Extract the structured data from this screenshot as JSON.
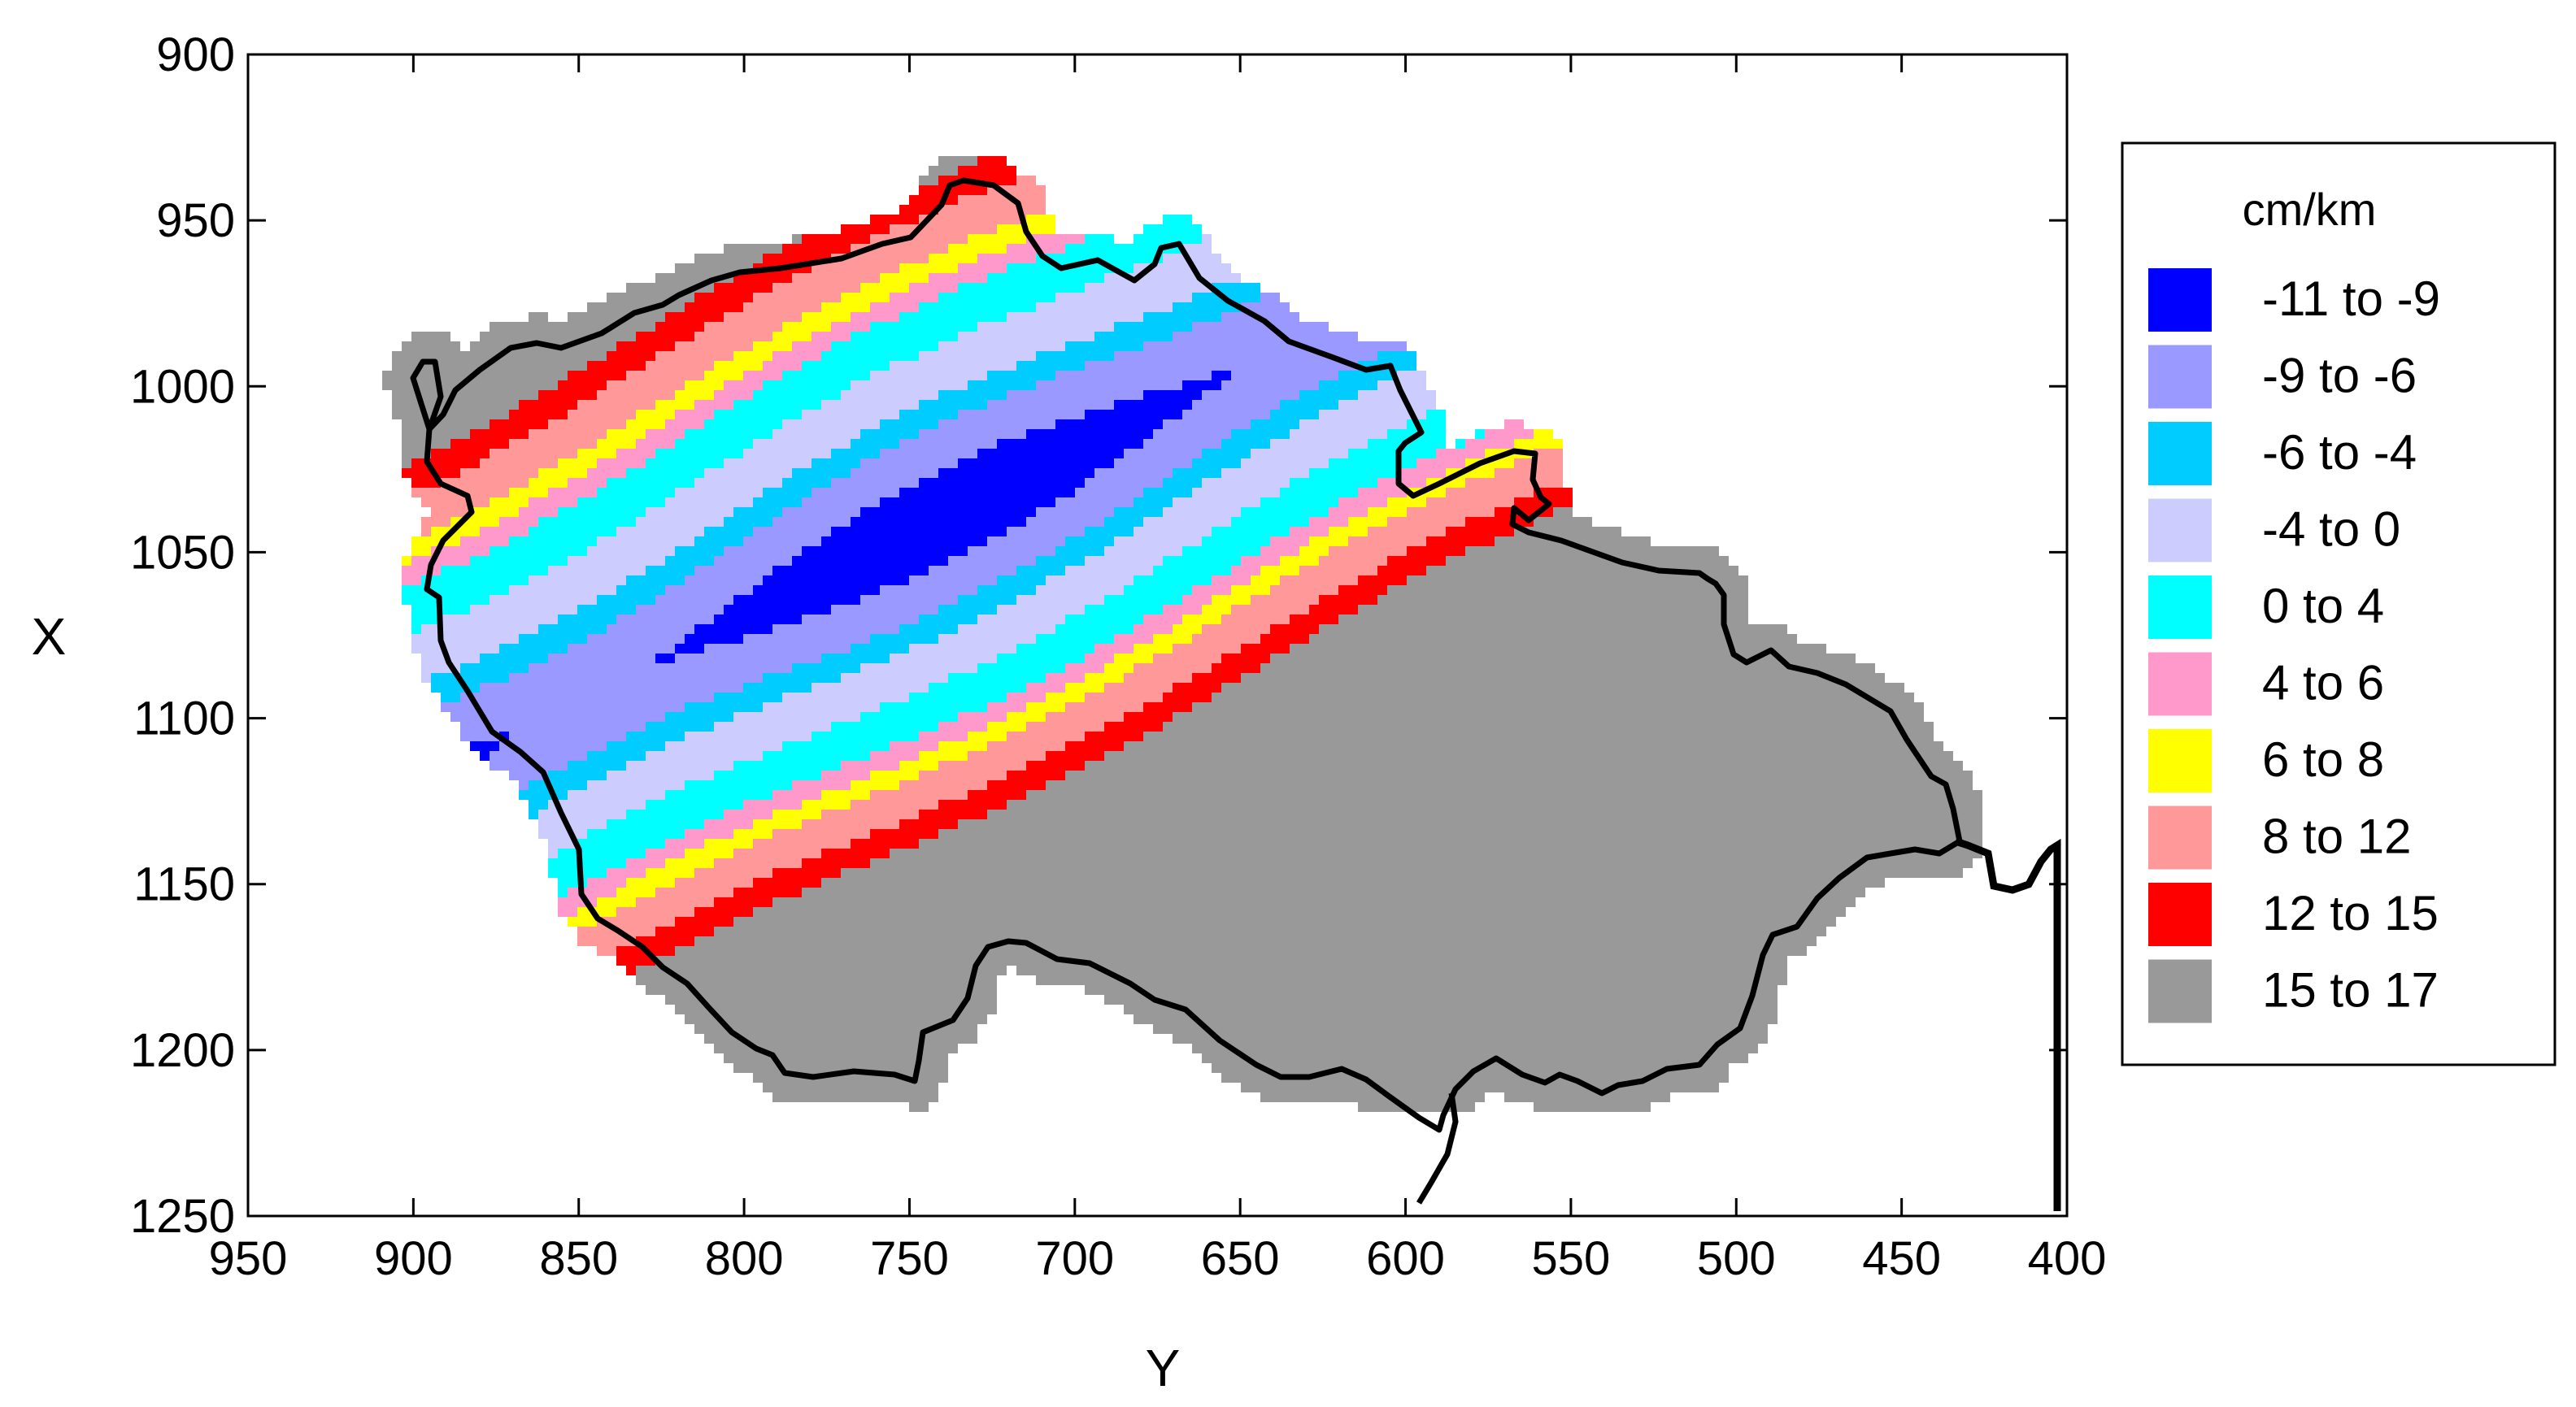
{
  "chart_data": {
    "type": "heatmap",
    "xlabel": "Y",
    "ylabel": "X",
    "xlim": [
      950,
      400
    ],
    "ylim": [
      1250,
      900
    ],
    "x_ticks": [
      "950",
      "900",
      "850",
      "800",
      "750",
      "700",
      "650",
      "600",
      "550",
      "500",
      "450",
      "400"
    ],
    "y_ticks": [
      "900",
      "950",
      "1000",
      "1050",
      "1100",
      "1150",
      "1200",
      "1250"
    ],
    "x_tick_values": [
      950,
      900,
      850,
      800,
      750,
      700,
      650,
      600,
      550,
      500,
      450,
      400
    ],
    "y_tick_values": [
      900,
      950,
      1000,
      1050,
      1100,
      1150,
      1200,
      1250
    ],
    "legend": {
      "title": "cm/km",
      "placement": "right",
      "classes": [
        {
          "label": "-11  to  -9",
          "color": "#0000ff"
        },
        {
          "label": "-9  to  -6",
          "color": "#9999ff"
        },
        {
          "label": "-6  to  -4",
          "color": "#00ccff"
        },
        {
          "label": "-4  to  0",
          "color": "#ccccff"
        },
        {
          "label": "0  to  4",
          "color": "#00ffff"
        },
        {
          "label": "4  to  6",
          "color": "#ff99cc"
        },
        {
          "label": "6  to  8",
          "color": "#ffff00"
        },
        {
          "label": "8  to  12",
          "color": "#ff9999"
        },
        {
          "label": "12  to  15",
          "color": "#ff0000"
        },
        {
          "label": "15  to  17",
          "color": "#999999"
        }
      ]
    },
    "border_color": "#000000",
    "grid": false
  }
}
